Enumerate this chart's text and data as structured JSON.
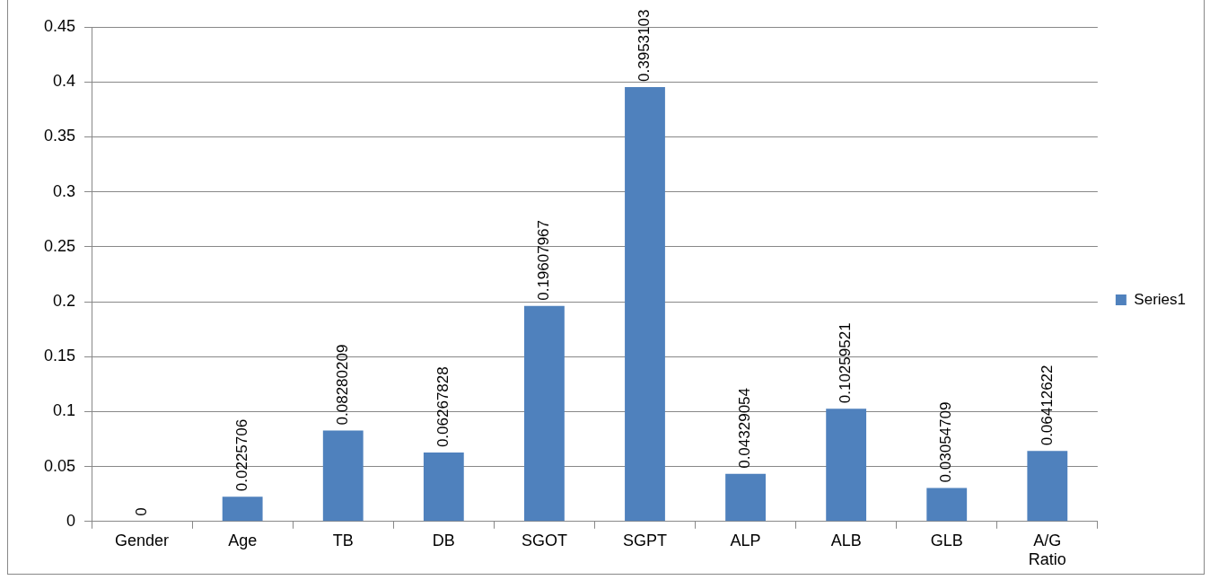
{
  "chart_data": {
    "type": "bar",
    "categories": [
      "Gender",
      "Age",
      "TB",
      "DB",
      "SGOT",
      "SGPT",
      "ALP",
      "ALB",
      "GLB",
      "A/G Ratio"
    ],
    "series": [
      {
        "name": "Series1",
        "color": "#4f81bd",
        "values": [
          0,
          0.0225706,
          0.08280209,
          0.06267828,
          0.19607967,
          0.3953103,
          0.04329054,
          0.10259521,
          0.03054709,
          0.06412622
        ]
      }
    ],
    "ylim": [
      0,
      0.45
    ],
    "yticks": [
      0,
      0.05,
      0.1,
      0.15,
      0.2,
      0.25,
      0.3,
      0.35,
      0.4,
      0.45
    ],
    "grid": "y",
    "legend": "right",
    "data_labels": true
  }
}
